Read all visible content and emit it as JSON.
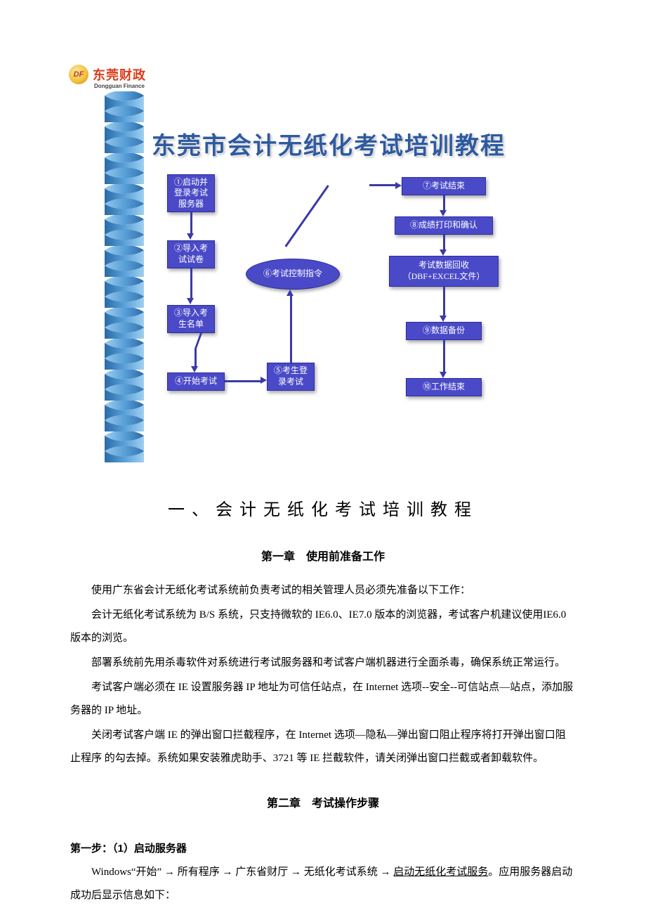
{
  "logo": {
    "badge": "DF",
    "text": "东莞财政",
    "sub": "Dongguan Finance",
    "text_color": "#d93c1a"
  },
  "banner_title": "东莞市会计无纸化考试培训教程",
  "banner_color": "#2e5aa0",
  "flow": {
    "node_fill": "#4a4ac8",
    "node_border": "#2c2c9e",
    "arrow_color": "#3a3aa8",
    "text_color": "#ffffff",
    "nodes": {
      "n1": "①启动并\n登录考试\n服务器",
      "n2": "②导入考\n试试卷",
      "n3": "③导入考\n生名单",
      "n4": "④开始考试",
      "n5": "⑤考生登\n录考试",
      "n6": "⑥考试控制指令",
      "n7": "⑦考试结束",
      "n8": "⑧成绩打印和确认",
      "nR": "考试数据回收\n（DBF+EXCEL文件）",
      "n9": "⑨数据备份",
      "n10": "⑩工作结束"
    }
  },
  "spiral": {
    "light": "#9fd0f0",
    "mid": "#5aa0d8",
    "dark": "#2a6aa8"
  },
  "doc": {
    "h1": "一、会计无纸化考试培训教程",
    "ch1_title": "第一章　使用前准备工作",
    "p1": "使用广东省会计无纸化考试系统前负责考试的相关管理人员必须先准备以下工作：",
    "p2": "会计无纸化考试系统为 B/S 系统，只支持微软的 IE6.0、IE7.0 版本的浏览器，考试客户机建议使用IE6.0 版本的浏览。",
    "p3": "部署系统前先用杀毒软件对系统进行考试服务器和考试客户端机器进行全面杀毒，确保系统正常运行。",
    "p4": "考试客户端必须在 IE 设置服务器 IP 地址为可信任站点，在 Internet 选项--安全--可信站点—站点，添加服务器的 IP 地址。",
    "p5": "关闭考试客户端 IE 的弹出窗口拦截程序，在 Internet 选项—隐私—弹出窗口阻止程序将打开弹出窗口阻止程序 的勾去掉。系统如果安装雅虎助手、3721 等 IE 拦截软件，请关闭弹出窗口拦截或者卸载软件。",
    "ch2_title": "第二章　考试操作步骤",
    "step1_head": "第一步：（1）启动服务器",
    "step1_a": "Windows“开始”",
    "step1_b": "所有程序",
    "step1_c": "广东省财厅",
    "step1_d": "无纸化考试系统",
    "step1_e": "启动无纸化考试服务",
    "step1_tail": "。应用服务器启动成功后显示信息如下：",
    "arrow": "→"
  }
}
